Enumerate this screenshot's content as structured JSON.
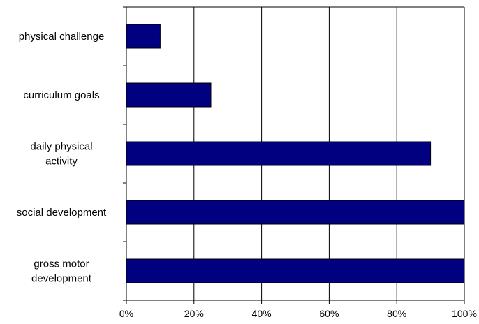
{
  "chart_data": {
    "type": "bar",
    "orientation": "horizontal",
    "categories": [
      [
        "physical challenge"
      ],
      [
        "curriculum goals"
      ],
      [
        "daily physical",
        "activity"
      ],
      [
        "social development"
      ],
      [
        "gross motor",
        "development"
      ]
    ],
    "values": [
      10,
      25,
      90,
      100,
      100
    ],
    "xlim": [
      0,
      100
    ],
    "xticks": [
      0,
      20,
      40,
      60,
      80,
      100
    ],
    "xtick_labels": [
      "0%",
      "20%",
      "40%",
      "60%",
      "80%",
      "100%"
    ],
    "grid": "vertical",
    "bar_color": "#000080",
    "title": "",
    "xlabel": "",
    "ylabel": ""
  }
}
